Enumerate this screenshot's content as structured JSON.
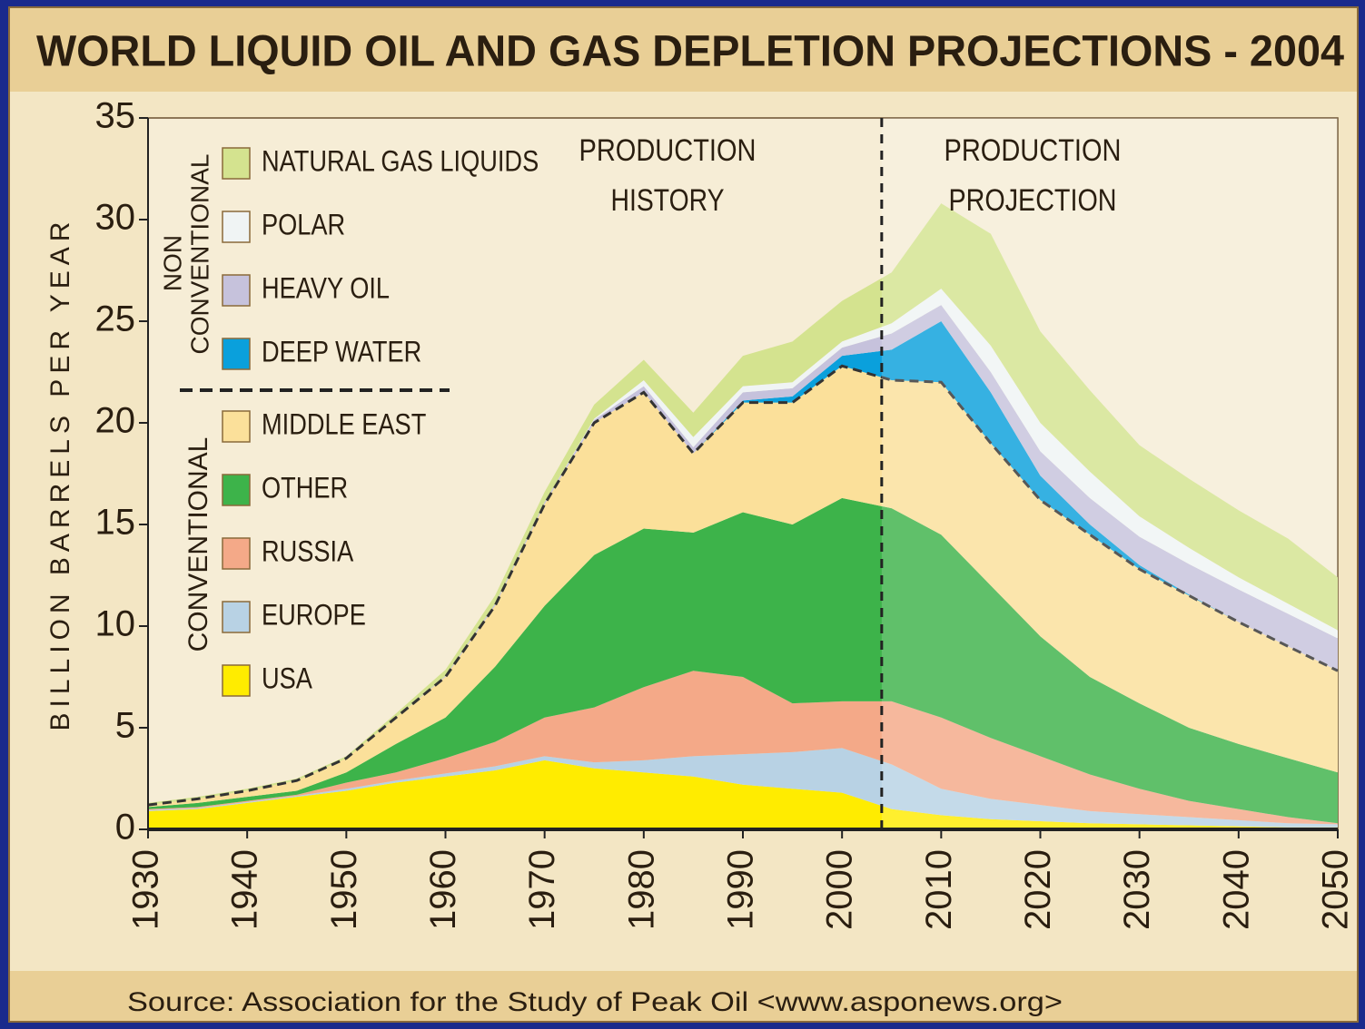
{
  "chart_data": {
    "type": "stacked_area",
    "title": "WORLD LIQUID OIL AND GAS DEPLETION PROJECTIONS - 2004",
    "y_label": "BILLION BARRELS PER YEAR",
    "source": "Source: Association for the Study of Peak Oil <www.asponews.org>",
    "annotations": [
      {
        "lines": [
          "PRODUCTION",
          "HISTORY"
        ]
      },
      {
        "lines": [
          "PRODUCTION",
          "PROJECTION"
        ]
      }
    ],
    "legend_groups": [
      {
        "lines": [
          "NON",
          "CONVENTIONAL"
        ]
      },
      {
        "lines": [
          "CONVENTIONAL"
        ]
      }
    ],
    "projection_start": 2004,
    "x": [
      1930,
      1935,
      1940,
      1945,
      1950,
      1955,
      1960,
      1965,
      1970,
      1975,
      1980,
      1985,
      1990,
      1995,
      2000,
      2005,
      2010,
      2015,
      2020,
      2025,
      2030,
      2035,
      2040,
      2045,
      2050
    ],
    "xlim": [
      1930,
      2050
    ],
    "xticks": [
      1930,
      1940,
      1950,
      1960,
      1970,
      1980,
      1990,
      2000,
      2010,
      2020,
      2030,
      2040,
      2050
    ],
    "ylim": [
      0,
      35
    ],
    "yticks": [
      0,
      5,
      10,
      15,
      20,
      25,
      30,
      35
    ],
    "series": [
      {
        "name": "USA",
        "color": "#ffec00",
        "values": [
          0.9,
          1.0,
          1.3,
          1.6,
          1.9,
          2.3,
          2.6,
          2.9,
          3.4,
          3.0,
          2.8,
          2.6,
          2.2,
          2.0,
          1.8,
          1.0,
          0.7,
          0.5,
          0.4,
          0.3,
          0.25,
          0.2,
          0.15,
          0.1,
          0.1
        ]
      },
      {
        "name": "EUROPE",
        "color": "#b8d2e4",
        "values": [
          0.05,
          0.05,
          0.05,
          0.05,
          0.1,
          0.1,
          0.15,
          0.2,
          0.2,
          0.3,
          0.6,
          1.0,
          1.5,
          1.8,
          2.2,
          2.2,
          1.3,
          1.0,
          0.8,
          0.6,
          0.5,
          0.4,
          0.3,
          0.2,
          0.15
        ]
      },
      {
        "name": "RUSSIA",
        "color": "#f4a988",
        "values": [
          0.05,
          0.05,
          0.05,
          0.05,
          0.3,
          0.4,
          0.75,
          1.2,
          1.9,
          2.7,
          3.6,
          4.2,
          3.8,
          2.4,
          2.3,
          3.1,
          3.5,
          3.0,
          2.4,
          1.8,
          1.25,
          0.8,
          0.55,
          0.3,
          0.05
        ]
      },
      {
        "name": "OTHER",
        "color": "#3db34a",
        "values": [
          0.1,
          0.2,
          0.2,
          0.2,
          0.5,
          1.4,
          2.0,
          3.7,
          5.5,
          7.5,
          7.8,
          6.8,
          8.1,
          8.8,
          10.0,
          9.5,
          9.0,
          7.5,
          5.9,
          4.8,
          4.2,
          3.6,
          3.2,
          2.9,
          2.5
        ]
      },
      {
        "name": "MIDDLE EAST",
        "color": "#fbe09a",
        "values": [
          0.1,
          0.2,
          0.3,
          0.5,
          0.7,
          1.3,
          2.0,
          3.0,
          5.0,
          6.5,
          6.7,
          3.9,
          5.4,
          6.0,
          6.5,
          6.3,
          7.5,
          7.0,
          6.7,
          7.0,
          6.6,
          6.5,
          6.0,
          5.5,
          5.0
        ]
      },
      {
        "name": "DEEP WATER",
        "color": "#0aa0dc",
        "values": [
          0,
          0,
          0,
          0,
          0,
          0,
          0,
          0,
          0,
          0,
          0,
          0,
          0.1,
          0.3,
          0.5,
          1.5,
          3.0,
          2.5,
          1.2,
          0.5,
          0.2,
          0.05,
          0,
          0,
          0
        ]
      },
      {
        "name": "HEAVY OIL",
        "color": "#c6c2dc",
        "values": [
          0,
          0,
          0,
          0,
          0,
          0,
          0.05,
          0.1,
          0.1,
          0.15,
          0.3,
          0.3,
          0.4,
          0.4,
          0.4,
          0.8,
          0.8,
          1.0,
          1.2,
          1.3,
          1.4,
          1.5,
          1.6,
          1.6,
          1.6
        ]
      },
      {
        "name": "POLAR",
        "color": "#f0f4f4",
        "values": [
          0,
          0,
          0,
          0,
          0,
          0,
          0,
          0,
          0,
          0.05,
          0.3,
          0.5,
          0.3,
          0.3,
          0.3,
          0.5,
          0.8,
          1.3,
          1.4,
          1.3,
          1.0,
          0.8,
          0.6,
          0.5,
          0.4
        ]
      },
      {
        "name": "NATURAL GAS LIQUIDS",
        "color": "#d4e38f",
        "values": [
          0.1,
          0.1,
          0.1,
          0.1,
          0.1,
          0.2,
          0.3,
          0.4,
          0.5,
          0.7,
          1.0,
          1.2,
          1.5,
          2.0,
          2.0,
          2.5,
          4.2,
          5.5,
          4.5,
          4.0,
          3.5,
          3.4,
          3.3,
          3.2,
          2.6
        ]
      }
    ]
  }
}
